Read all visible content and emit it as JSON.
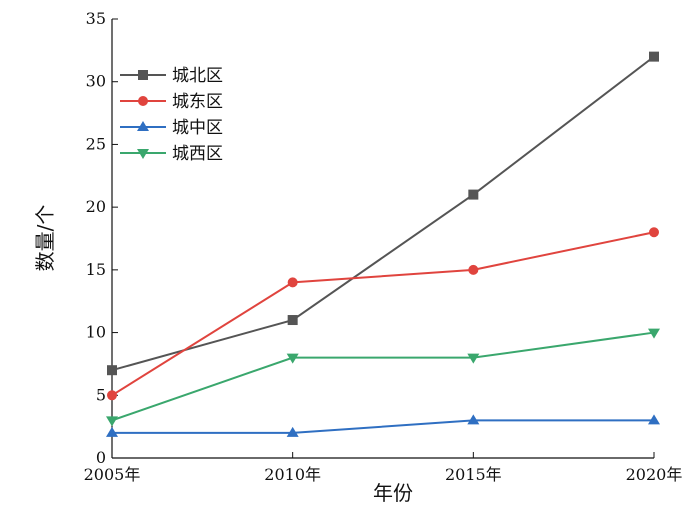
{
  "chart_data": {
    "type": "line",
    "title": "",
    "xlabel": "年份",
    "ylabel": "数量/个",
    "categories": [
      "2005年",
      "2010年",
      "2015年",
      "2020年"
    ],
    "ylim": [
      0,
      35
    ],
    "yticks": [
      0,
      5,
      10,
      15,
      20,
      25,
      30,
      35
    ],
    "grid": false,
    "legend_position": "top-left",
    "series": [
      {
        "name": "城北区",
        "values": [
          7,
          11,
          21,
          32
        ],
        "color": "#555555",
        "marker": "square"
      },
      {
        "name": "城东区",
        "values": [
          5,
          14,
          15,
          18
        ],
        "color": "#e0443e",
        "marker": "circle"
      },
      {
        "name": "城中区",
        "values": [
          2,
          2,
          3,
          3
        ],
        "color": "#2f6fc2",
        "marker": "triangle-up"
      },
      {
        "name": "城西区",
        "values": [
          3,
          8,
          8,
          10
        ],
        "color": "#3aa76d",
        "marker": "triangle-down"
      }
    ]
  }
}
